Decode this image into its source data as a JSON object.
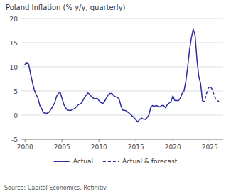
{
  "chart_data": {
    "type": "line",
    "title": "Poland Inflation (% y/y, quarterly)",
    "annotations": [
      "Source: Capital Economics, Refinitiv."
    ],
    "xlim": [
      1999.5,
      2026.8
    ],
    "xticks": [
      2000,
      2005,
      2010,
      2015,
      2020,
      2025
    ],
    "ylim": [
      -5,
      20
    ],
    "yticks": [
      -5,
      0,
      5,
      10,
      15,
      20
    ],
    "grid": true,
    "legend": "bottom",
    "series": [
      {
        "name": "Actual",
        "color": "#2d2d9f",
        "line_style": "solid",
        "x": [
          2000.0,
          2000.25,
          2000.5,
          2000.75,
          2001.0,
          2001.25,
          2001.5,
          2001.75,
          2002.0,
          2002.25,
          2002.5,
          2002.75,
          2003.0,
          2003.25,
          2003.5,
          2003.75,
          2004.0,
          2004.25,
          2004.5,
          2004.75,
          2005.0,
          2005.25,
          2005.5,
          2005.75,
          2006.0,
          2006.25,
          2006.5,
          2006.75,
          2007.0,
          2007.25,
          2007.5,
          2007.75,
          2008.0,
          2008.25,
          2008.5,
          2008.75,
          2009.0,
          2009.25,
          2009.5,
          2009.75,
          2010.0,
          2010.25,
          2010.5,
          2010.75,
          2011.0,
          2011.25,
          2011.5,
          2011.75,
          2012.0,
          2012.25,
          2012.5,
          2012.75,
          2013.0,
          2013.25,
          2013.5,
          2013.75,
          2014.0,
          2014.25,
          2014.5,
          2014.75,
          2015.0,
          2015.25,
          2015.5,
          2015.75,
          2016.0,
          2016.25,
          2016.5,
          2016.75,
          2017.0,
          2017.25,
          2017.5,
          2017.75,
          2018.0,
          2018.25,
          2018.5,
          2018.75,
          2019.0,
          2019.25,
          2019.5,
          2019.75,
          2020.0,
          2020.25,
          2020.5,
          2020.75,
          2021.0,
          2021.25,
          2021.5,
          2021.75,
          2022.0,
          2022.25,
          2022.5,
          2022.75,
          2023.0,
          2023.25,
          2023.5,
          2023.75,
          2024.0
        ],
        "values": [
          10.5,
          10.9,
          10.5,
          8.5,
          6.8,
          5.2,
          4.3,
          3.5,
          2.0,
          1.3,
          0.5,
          0.4,
          0.4,
          0.6,
          1.2,
          1.8,
          2.5,
          3.8,
          4.5,
          4.7,
          3.5,
          2.2,
          1.5,
          1.0,
          1.0,
          1.0,
          1.2,
          1.4,
          1.8,
          2.2,
          2.3,
          2.8,
          3.5,
          4.1,
          4.6,
          4.3,
          3.8,
          3.5,
          3.4,
          3.5,
          3.0,
          2.6,
          2.4,
          2.8,
          3.5,
          4.2,
          4.5,
          4.5,
          4.0,
          3.8,
          3.7,
          3.2,
          1.8,
          1.0,
          1.0,
          0.8,
          0.5,
          0.2,
          -0.2,
          -0.5,
          -1.0,
          -1.4,
          -0.9,
          -0.6,
          -0.8,
          -0.9,
          -0.5,
          0.0,
          1.6,
          2.0,
          1.8,
          2.0,
          1.8,
          1.7,
          2.0,
          2.0,
          1.5,
          2.2,
          2.5,
          2.8,
          4.0,
          3.0,
          3.0,
          3.0,
          3.5,
          4.5,
          5.0,
          7.0,
          10.0,
          13.5,
          16.0,
          17.8,
          16.5,
          11.5,
          8.0,
          6.5,
          3.0
        ]
      },
      {
        "name": "Actual & forecast",
        "color": "#2d2d9f",
        "line_style": "dashed",
        "x": [
          2024.0,
          2024.25,
          2024.5,
          2024.75,
          2025.0,
          2025.25,
          2025.5,
          2025.75,
          2026.0,
          2026.25
        ],
        "values": [
          3.0,
          2.8,
          4.2,
          5.5,
          6.0,
          5.5,
          4.5,
          3.5,
          3.0,
          2.8
        ]
      }
    ]
  }
}
